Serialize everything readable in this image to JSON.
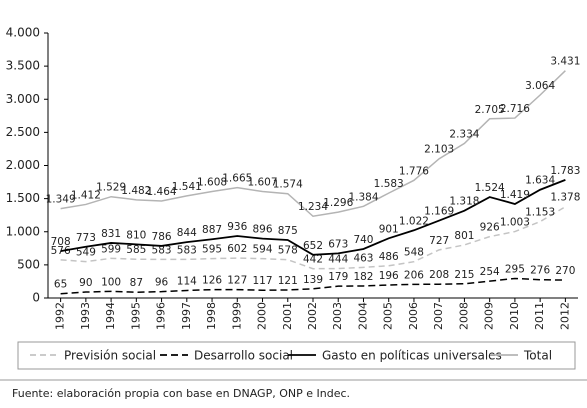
{
  "chart_data": {
    "type": "line",
    "categories": [
      "1992",
      "1993",
      "1994",
      "1995",
      "1996",
      "1997",
      "1998",
      "1999",
      "2000",
      "2001",
      "2002",
      "2003",
      "2004",
      "2005",
      "2006",
      "2007",
      "2008",
      "2009",
      "2010",
      "2011",
      "2012"
    ],
    "ylim": [
      0,
      4000
    ],
    "yticks": [
      0,
      500,
      {
        "value": 1000,
        "label": "1.000"
      },
      {
        "value": 1500,
        "label": "1.500"
      },
      {
        "value": 2000,
        "label": "2.000"
      },
      {
        "value": 2500,
        "label": "2.500"
      },
      {
        "value": 3000,
        "label": "3.000"
      },
      {
        "value": 3500,
        "label": "3.500"
      },
      {
        "value": 4000,
        "label": "4.000"
      }
    ],
    "series": [
      {
        "name": "Previsión social",
        "color": "#c4c4c4",
        "dash": "6,4",
        "values": [
          576,
          549,
          599,
          585,
          583,
          583,
          595,
          602,
          594,
          578,
          442,
          444,
          463,
          486,
          548,
          727,
          801,
          926,
          1003,
          1153,
          1378
        ],
        "value_labels": [
          "576",
          "549",
          "599",
          "585",
          "583",
          "583",
          "595",
          "602",
          "594",
          "578",
          "442",
          "444",
          "463",
          "486",
          "548",
          "727",
          "801",
          "926",
          "1.003",
          "1.153",
          "1.378"
        ]
      },
      {
        "name": "Desarrollo social",
        "color": "#000000",
        "dash": "7,4",
        "values": [
          65,
          90,
          100,
          87,
          96,
          114,
          126,
          127,
          117,
          121,
          139,
          179,
          182,
          196,
          206,
          208,
          215,
          254,
          295,
          276,
          270
        ],
        "value_labels": [
          "65",
          "90",
          "100",
          "87",
          "96",
          "114",
          "126",
          "127",
          "117",
          "121",
          "139",
          "179",
          "182",
          "196",
          "206",
          "208",
          "215",
          "254",
          "295",
          "276",
          "270"
        ]
      },
      {
        "name": "Gasto en políticas universales",
        "color": "#000000",
        "values": [
          708,
          773,
          831,
          810,
          786,
          844,
          887,
          936,
          896,
          875,
          652,
          673,
          740,
          901,
          1022,
          1169,
          1318,
          1524,
          1419,
          1634,
          1783
        ],
        "value_labels": [
          "708",
          "773",
          "831",
          "810",
          "786",
          "844",
          "887",
          "936",
          "896",
          "875",
          "652",
          "673",
          "740",
          "901",
          "1.022",
          "1.169",
          "1.318",
          "1.524",
          "1.419",
          "1.634",
          "1.783"
        ]
      },
      {
        "name": "Total",
        "color": "#b4b4b4",
        "values": [
          1349,
          1412,
          1529,
          1482,
          1464,
          1541,
          1608,
          1665,
          1607,
          1574,
          1234,
          1296,
          1384,
          1583,
          1776,
          2103,
          2334,
          2705,
          2716,
          3064,
          3431
        ],
        "value_labels": [
          "1.349",
          "1.412",
          "1.529",
          "1.482",
          "1.464",
          "1.541",
          "1.608",
          "1.665",
          "1.607",
          "1.574",
          "1.234",
          "1.296",
          "1.384",
          "1.583",
          "1.776",
          "2.103",
          "2.334",
          "2.705",
          "2.716",
          "3.064",
          "3.431"
        ]
      }
    ],
    "source": "Fuente: elaboración propia con base en DNAGP, ONP e Indec."
  }
}
